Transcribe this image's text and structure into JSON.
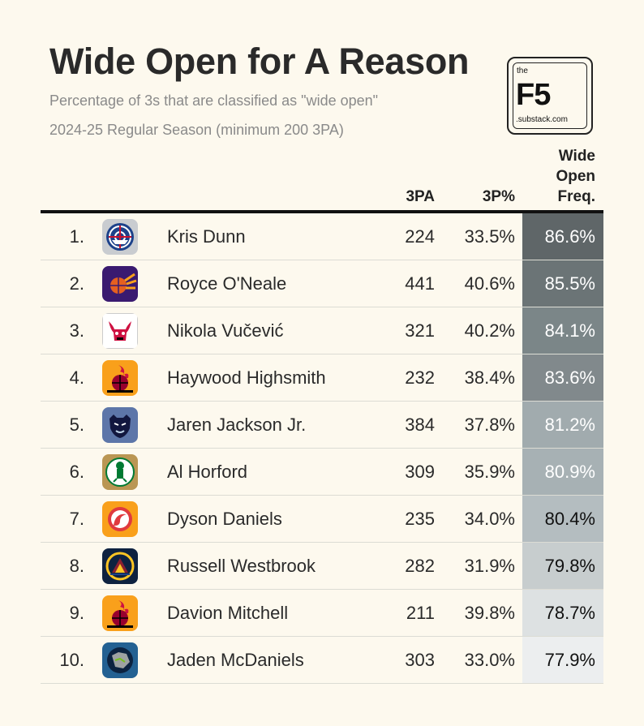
{
  "header": {
    "title": "Wide Open for A Reason",
    "subtitle": "Percentage of 3s that are classified as \"wide open\"",
    "subtitle2": "2024-25 Regular Season (minimum 200 3PA)"
  },
  "logo": {
    "the": "the",
    "brand": "F5",
    "domain": ".substack.com"
  },
  "columns": {
    "three_pa": "3PA",
    "three_pct": "3P%",
    "wide_open_l1": "Wide",
    "wide_open_l2": "Open",
    "wide_open_l3": "Freq."
  },
  "rows": [
    {
      "rank": "1.",
      "team_icon": "clippers-logo-icon",
      "player": "Kris Dunn",
      "three_pa": "224",
      "three_pct": "33.5%",
      "wide_open": "86.6%",
      "cell_color": "#5f6668",
      "text_color": "#ffffff"
    },
    {
      "rank": "2.",
      "team_icon": "suns-logo-icon",
      "player": "Royce O'Neale",
      "three_pa": "441",
      "three_pct": "40.6%",
      "wide_open": "85.5%",
      "cell_color": "#6b7476",
      "text_color": "#ffffff"
    },
    {
      "rank": "3.",
      "team_icon": "bulls-logo-icon",
      "player": "Nikola Vučević",
      "three_pa": "321",
      "three_pct": "40.2%",
      "wide_open": "84.1%",
      "cell_color": "#7b8688",
      "text_color": "#ffffff"
    },
    {
      "rank": "4.",
      "team_icon": "heat-logo-icon",
      "player": "Haywood Highsmith",
      "three_pa": "232",
      "three_pct": "38.4%",
      "wide_open": "83.6%",
      "cell_color": "#81898c",
      "text_color": "#ffffff"
    },
    {
      "rank": "5.",
      "team_icon": "grizzlies-logo-icon",
      "player": "Jaren Jackson Jr.",
      "three_pa": "384",
      "three_pct": "37.8%",
      "wide_open": "81.2%",
      "cell_color": "#a1abae",
      "text_color": "#ffffff"
    },
    {
      "rank": "6.",
      "team_icon": "celtics-logo-icon",
      "player": "Al Horford",
      "three_pa": "309",
      "three_pct": "35.9%",
      "wide_open": "80.9%",
      "cell_color": "#a7b1b4",
      "text_color": "#ffffff"
    },
    {
      "rank": "7.",
      "team_icon": "hawks-logo-icon",
      "player": "Dyson Daniels",
      "three_pa": "235",
      "three_pct": "34.0%",
      "wide_open": "80.4%",
      "cell_color": "#b4bdc0",
      "text_color": "#111111"
    },
    {
      "rank": "8.",
      "team_icon": "nuggets-logo-icon",
      "player": "Russell Westbrook",
      "three_pa": "282",
      "three_pct": "31.9%",
      "wide_open": "79.8%",
      "cell_color": "#c7cdce",
      "text_color": "#111111"
    },
    {
      "rank": "9.",
      "team_icon": "heat-logo-icon",
      "player": "Davion Mitchell",
      "three_pa": "211",
      "three_pct": "39.8%",
      "wide_open": "78.7%",
      "cell_color": "#dde1e2",
      "text_color": "#111111"
    },
    {
      "rank": "10.",
      "team_icon": "timberwolves-logo-icon",
      "player": "Jaden McDaniels",
      "three_pa": "303",
      "three_pct": "33.0%",
      "wide_open": "77.9%",
      "cell_color": "#eceeef",
      "text_color": "#111111"
    }
  ]
}
